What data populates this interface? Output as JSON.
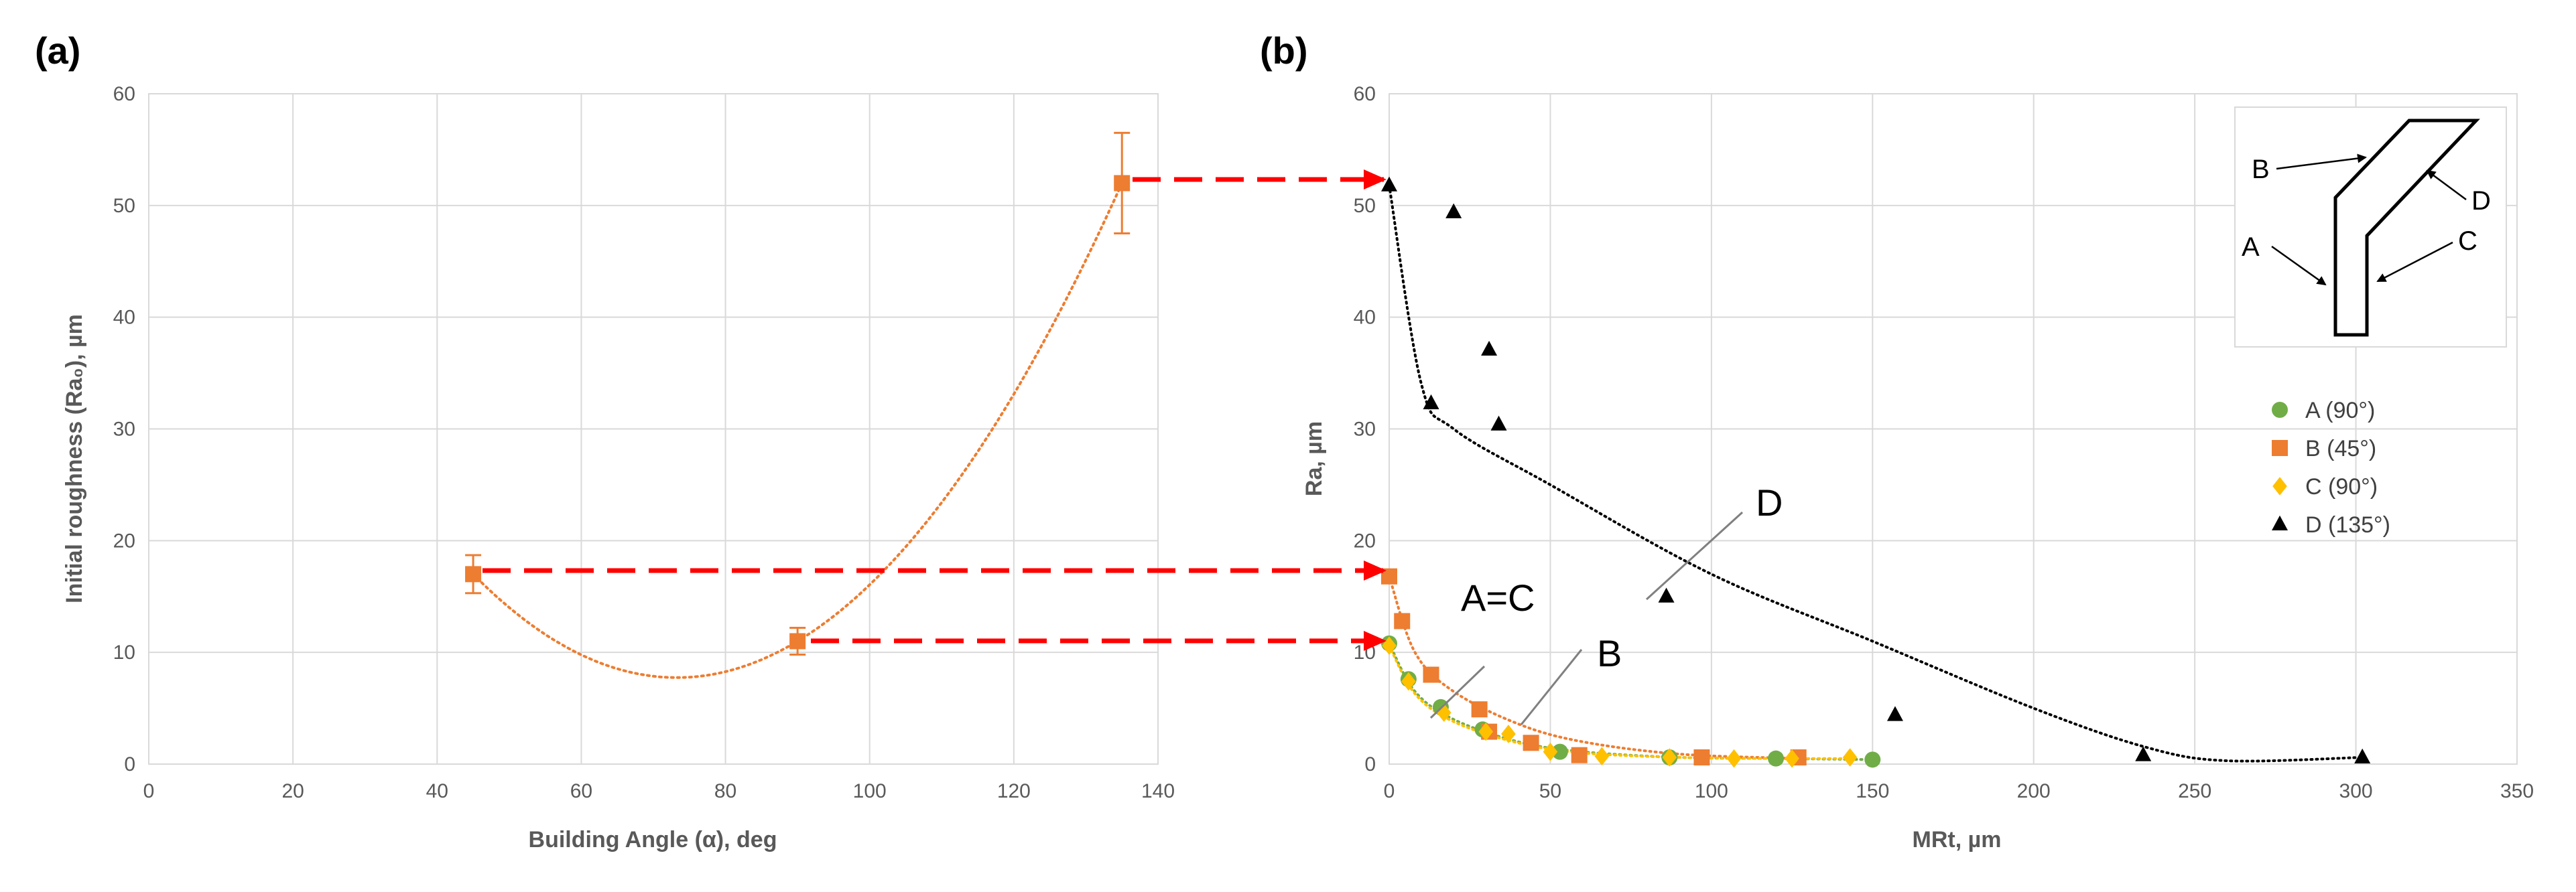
{
  "panel_labels": [
    "(a)",
    "(b)"
  ],
  "colors": {
    "orange": "#ED7D31",
    "green": "#70AD47",
    "yellow": "#FFC000",
    "black": "#000000",
    "arrow_red": "#FF0000",
    "grid": "#D9D9D9",
    "tick_text": "#595959"
  },
  "chart_data": [
    {
      "type": "scatter",
      "panel": "(a)",
      "xlabel": "Building Angle (α), deg",
      "ylabel": "Initial roughness (Ra₀), µm",
      "xlim": [
        0,
        140
      ],
      "ylim": [
        0,
        60
      ],
      "xticks": [
        "0",
        "20",
        "40",
        "60",
        "80",
        "100",
        "120",
        "140"
      ],
      "yticks": [
        "0",
        "10",
        "20",
        "30",
        "40",
        "50",
        "60"
      ],
      "grid": true,
      "series": [
        {
          "marker": "square",
          "color": "#ED7D31",
          "x": [
            45,
            90,
            135
          ],
          "y": [
            17,
            11,
            52
          ],
          "error": [
            1.7,
            1.2,
            4.5
          ],
          "trendline": "polynomial (dotted)"
        }
      ]
    },
    {
      "type": "scatter",
      "panel": "(b)",
      "xlabel": "MRt, µm",
      "ylabel": "Ra, µm",
      "xlim": [
        0,
        350
      ],
      "ylim": [
        0,
        60
      ],
      "xticks": [
        "0",
        "50",
        "100",
        "150",
        "200",
        "250",
        "300",
        "350"
      ],
      "yticks": [
        "0",
        "10",
        "20",
        "30",
        "40",
        "50",
        "60"
      ],
      "grid": true,
      "legend_position": "right",
      "series": [
        {
          "name": "A (90°)",
          "marker": "circle",
          "color": "#70AD47",
          "x": [
            0,
            6,
            16,
            29,
            53,
            87,
            120,
            150
          ],
          "y": [
            10.8,
            7.6,
            5.1,
            3.1,
            1.1,
            0.6,
            0.5,
            0.4
          ]
        },
        {
          "name": "B (45°)",
          "marker": "square",
          "color": "#ED7D31",
          "x": [
            0,
            4,
            13,
            28,
            31,
            44,
            59,
            97,
            127
          ],
          "y": [
            16.8,
            12.8,
            8.0,
            4.9,
            2.9,
            1.9,
            0.8,
            0.6,
            0.6
          ]
        },
        {
          "name": "C (90°)",
          "marker": "diamond",
          "color": "#FFC000",
          "x": [
            0,
            6,
            17,
            30,
            37,
            50,
            66,
            87,
            107,
            125,
            143
          ],
          "y": [
            10.6,
            7.4,
            4.6,
            2.9,
            2.7,
            1.1,
            0.7,
            0.6,
            0.5,
            0.5,
            0.6
          ]
        },
        {
          "name": "D (135°)",
          "marker": "triangle",
          "color": "#000000",
          "x": [
            0,
            13,
            20,
            31,
            34,
            86,
            157,
            234,
            302
          ],
          "y": [
            51.8,
            32.3,
            49.4,
            37.1,
            30.4,
            15.0,
            4.4,
            0.8,
            0.6
          ]
        }
      ],
      "annotations": [
        {
          "text": "D"
        },
        {
          "text": "A=C"
        },
        {
          "text": "B"
        }
      ],
      "inset_labels": [
        "A",
        "B",
        "C",
        "D"
      ]
    }
  ]
}
